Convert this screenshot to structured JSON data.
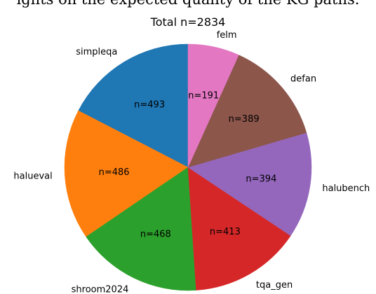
{
  "header": {
    "text": "ights on the expected quality of the KG paths."
  },
  "chart_data": {
    "type": "pie",
    "title": "Total n=2834",
    "start_angle_deg": 90,
    "direction": "counterclockwise",
    "legend": "none",
    "slices": [
      {
        "label": "simpleqa",
        "value": 493,
        "value_label": "n=493",
        "color": "#1f77b4"
      },
      {
        "label": "halueval",
        "value": 486,
        "value_label": "n=486",
        "color": "#ff7f0e"
      },
      {
        "label": "shroom2024",
        "value": 468,
        "value_label": "n=468",
        "color": "#2ca02c"
      },
      {
        "label": "tqa_gen",
        "value": 413,
        "value_label": "n=413",
        "color": "#d62728"
      },
      {
        "label": "halubench",
        "value": 394,
        "value_label": "n=394",
        "color": "#9467bd"
      },
      {
        "label": "defan",
        "value": 389,
        "value_label": "n=389",
        "color": "#8c564b"
      },
      {
        "label": "felm",
        "value": 191,
        "value_label": "n=191",
        "color": "#e377c2"
      }
    ]
  }
}
